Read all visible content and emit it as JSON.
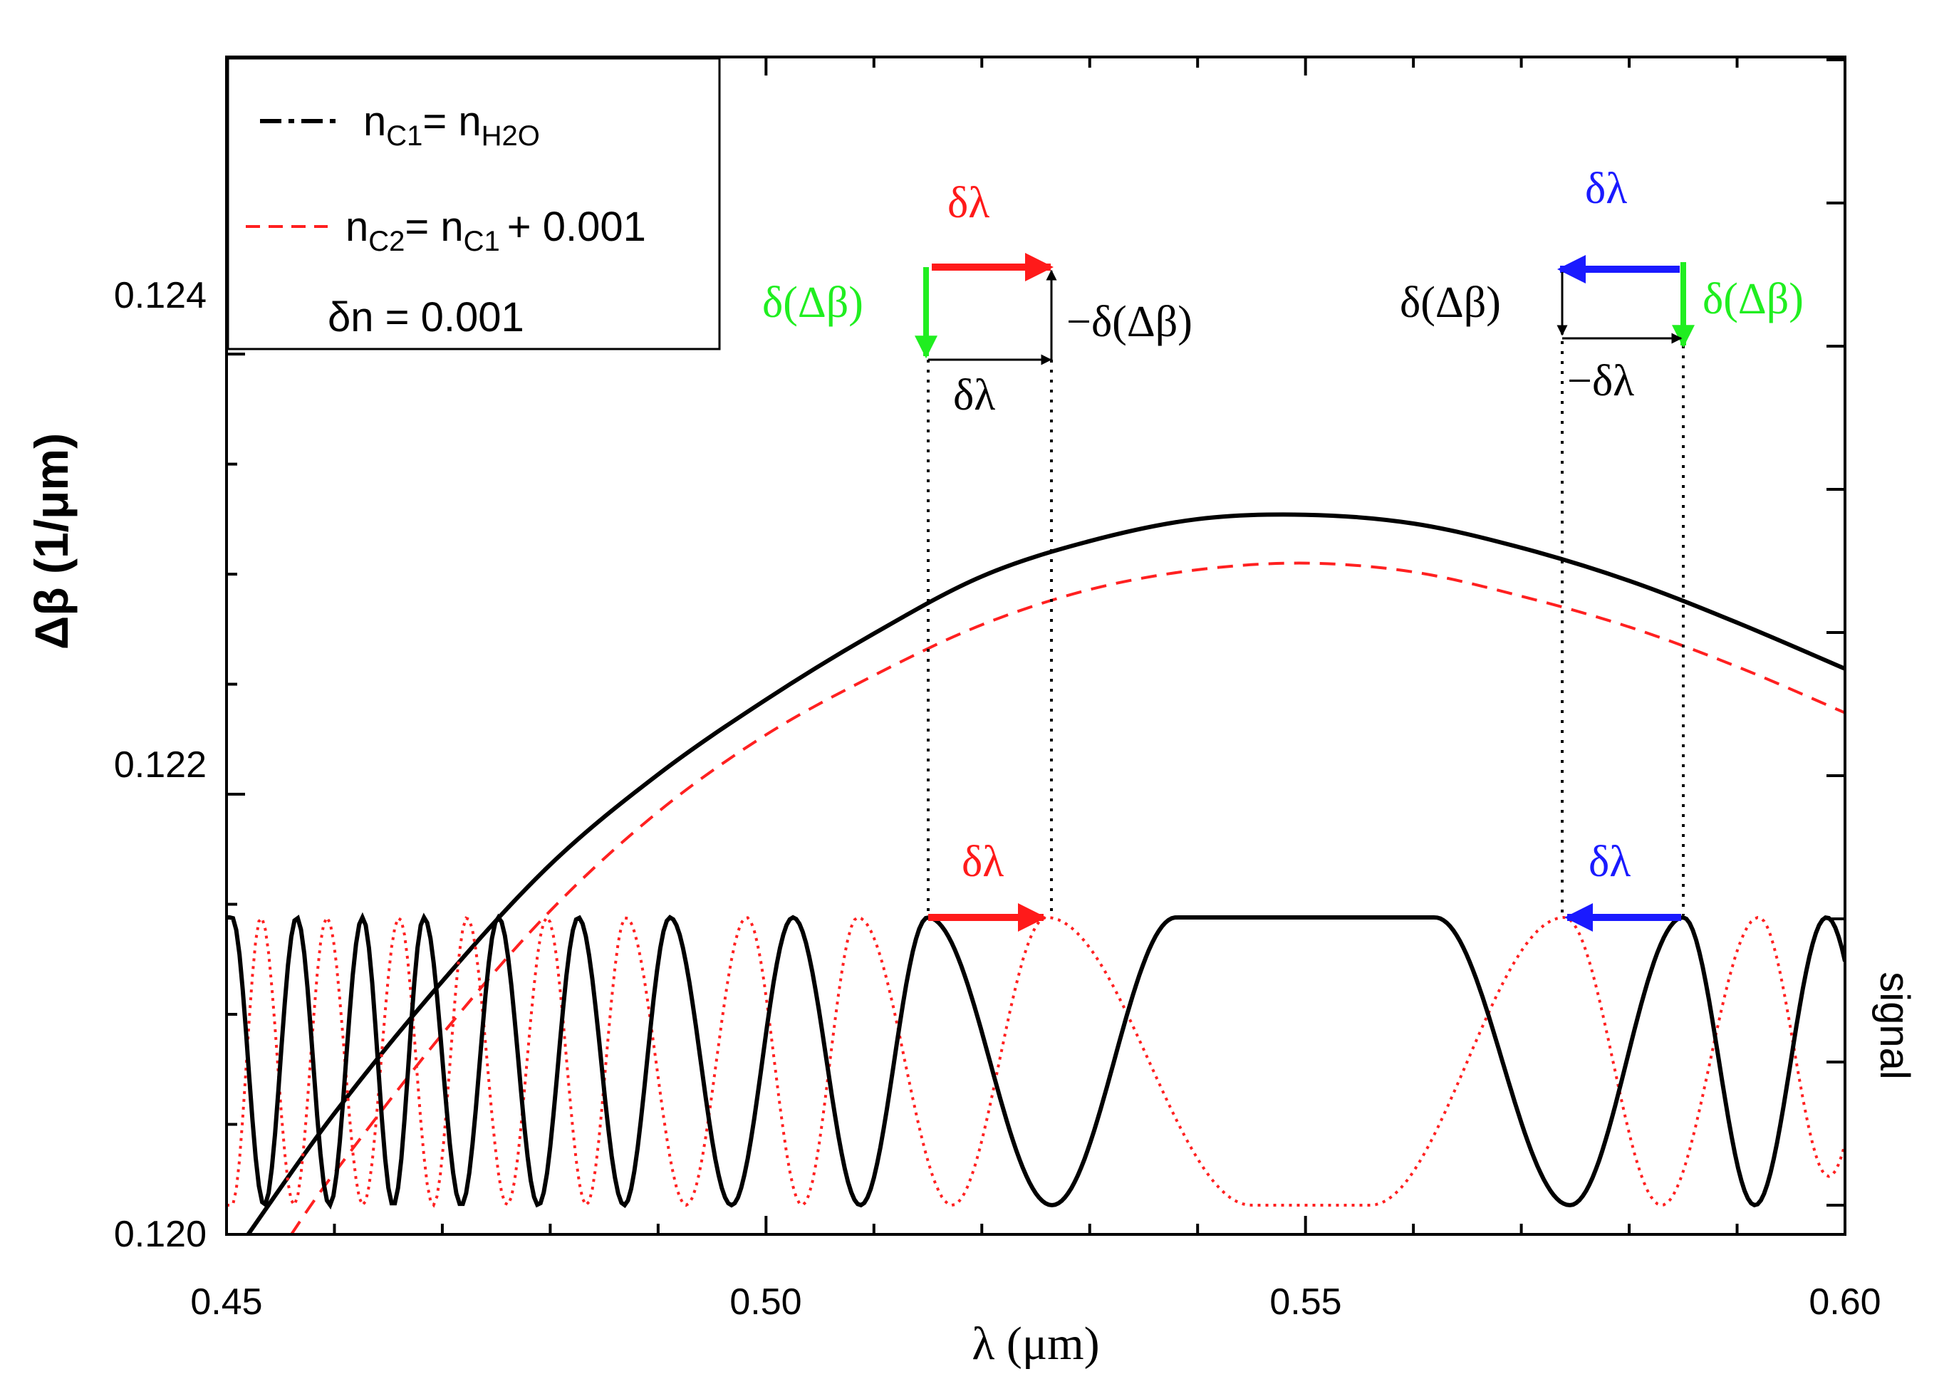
{
  "chart_data": {
    "type": "line",
    "title": "",
    "xlabel": "λ (μm)",
    "ylabel": "Δβ (1/μm)",
    "y2label": "signal",
    "xlim": [
      0.45,
      0.6
    ],
    "ylim": [
      0.12,
      0.12535
    ],
    "xticks": [
      "0.45",
      "0.50",
      "0.55",
      "0.60"
    ],
    "xtick_values": [
      0.45,
      0.5,
      0.55,
      0.6
    ],
    "yticks": [
      "0.120",
      "0.122",
      "0.124"
    ],
    "ytick_values": [
      0.12,
      0.122,
      0.124
    ],
    "series": [
      {
        "name": "n_C1 = n_H2O",
        "style": "solid",
        "color": "#000000",
        "axis": "left",
        "x": [
          0.452,
          0.46,
          0.47,
          0.48,
          0.49,
          0.5,
          0.51,
          0.52,
          0.53,
          0.54,
          0.55,
          0.56,
          0.57,
          0.58,
          0.59,
          0.6
        ],
        "y": [
          0.12,
          0.12055,
          0.12115,
          0.12168,
          0.12209,
          0.12243,
          0.12273,
          0.12299,
          0.12315,
          0.12325,
          0.12327,
          0.12323,
          0.12312,
          0.12297,
          0.12278,
          0.12257
        ]
      },
      {
        "name": "n_C2 = n_C1 + 0.001",
        "style": "dashed",
        "color": "#ff2020",
        "axis": "left",
        "x": [
          0.456,
          0.46,
          0.47,
          0.48,
          0.49,
          0.5,
          0.51,
          0.52,
          0.53,
          0.54,
          0.55,
          0.56,
          0.57,
          0.58,
          0.59,
          0.6
        ],
        "y": [
          0.12,
          0.12028,
          0.12091,
          0.12147,
          0.12192,
          0.12227,
          0.12254,
          0.12277,
          0.12293,
          0.12302,
          0.12305,
          0.12301,
          0.1229,
          0.12276,
          0.12258,
          0.12237
        ]
      },
      {
        "name": "signal (n_C1)",
        "style": "solid",
        "color": "#000000",
        "axis": "right",
        "peaks_x": [
          0.4505,
          0.4565,
          0.4626,
          0.4683,
          0.4752,
          0.4826,
          0.4911,
          0.5025,
          0.515,
          0.585,
          0.5983
        ],
        "flat_region": [
          0.538,
          0.562
        ],
        "range": [
          0,
          1
        ]
      },
      {
        "name": "signal (n_C2)",
        "style": "dotted",
        "color": "#ff2020",
        "axis": "right",
        "peaks_x": [
          0.4532,
          0.4593,
          0.466,
          0.4723,
          0.4797,
          0.487,
          0.4982,
          0.5085,
          0.526,
          0.574,
          0.592
        ],
        "flat_region": [
          0.545,
          0.556
        ],
        "range": [
          0,
          1
        ]
      }
    ],
    "legend": {
      "position": "top-left",
      "entries": [
        {
          "prefix": "n",
          "sub": "C1",
          "text": "= n",
          "sub2": "H2O",
          "tail": "",
          "style": "dashdot"
        },
        {
          "prefix": "n",
          "sub": "C2",
          "text": "= n",
          "sub2": "C1",
          "tail": "+ 0.001",
          "style": "dashed"
        }
      ],
      "note": "δn = 0.001"
    },
    "annotations": {
      "dlambda": "δλ",
      "minus_dlambda": "−δλ",
      "d_dbeta": "δ(Δβ)",
      "minus_d_dbeta": "−δ(Δβ)"
    },
    "colors": {
      "series1": "#000000",
      "series2": "#ff2020",
      "red_arrow": "#ff1a1a",
      "blue_arrow": "#1a1aff",
      "green_arrow": "#20ee20"
    }
  }
}
